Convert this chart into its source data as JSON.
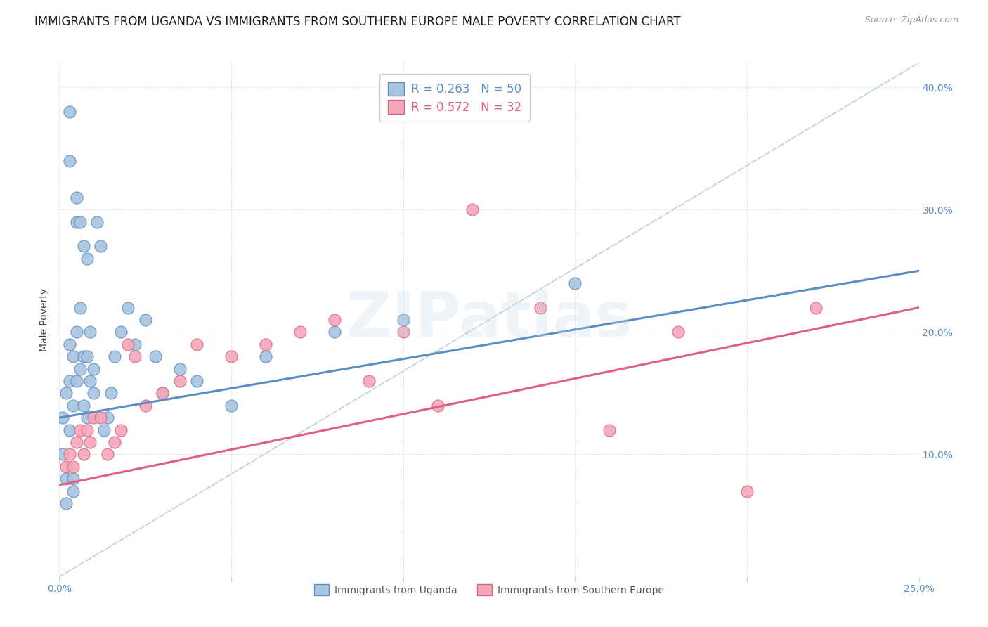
{
  "title": "IMMIGRANTS FROM UGANDA VS IMMIGRANTS FROM SOUTHERN EUROPE MALE POVERTY CORRELATION CHART",
  "source": "Source: ZipAtlas.com",
  "ylabel": "Male Poverty",
  "xlim": [
    0.0,
    0.25
  ],
  "ylim": [
    0.0,
    0.42
  ],
  "legend_r1": "R = 0.263",
  "legend_n1": "N = 50",
  "legend_r2": "R = 0.572",
  "legend_n2": "N = 32",
  "color_uganda": "#a8c4e0",
  "color_s_europe": "#f4a7b9",
  "color_uganda_line": "#5b8ec4",
  "color_s_europe_line": "#e06080",
  "color_dashed_line": "#b8ccd8",
  "legend_label1": "Immigrants from Uganda",
  "legend_label2": "Immigrants from Southern Europe",
  "uganda_x": [
    0.001,
    0.001,
    0.002,
    0.002,
    0.002,
    0.003,
    0.003,
    0.003,
    0.003,
    0.003,
    0.004,
    0.004,
    0.004,
    0.004,
    0.005,
    0.005,
    0.005,
    0.005,
    0.006,
    0.006,
    0.006,
    0.007,
    0.007,
    0.007,
    0.008,
    0.008,
    0.008,
    0.009,
    0.009,
    0.01,
    0.01,
    0.011,
    0.012,
    0.013,
    0.014,
    0.015,
    0.016,
    0.018,
    0.02,
    0.022,
    0.025,
    0.028,
    0.03,
    0.035,
    0.04,
    0.05,
    0.06,
    0.08,
    0.1,
    0.15
  ],
  "uganda_y": [
    0.13,
    0.1,
    0.15,
    0.08,
    0.06,
    0.38,
    0.34,
    0.19,
    0.16,
    0.12,
    0.18,
    0.14,
    0.08,
    0.07,
    0.31,
    0.29,
    0.2,
    0.16,
    0.29,
    0.22,
    0.17,
    0.27,
    0.18,
    0.14,
    0.13,
    0.26,
    0.18,
    0.2,
    0.16,
    0.17,
    0.15,
    0.29,
    0.27,
    0.12,
    0.13,
    0.15,
    0.18,
    0.2,
    0.22,
    0.19,
    0.21,
    0.18,
    0.15,
    0.17,
    0.16,
    0.14,
    0.18,
    0.2,
    0.21,
    0.24
  ],
  "s_europe_x": [
    0.002,
    0.003,
    0.004,
    0.005,
    0.006,
    0.007,
    0.008,
    0.009,
    0.01,
    0.012,
    0.014,
    0.016,
    0.018,
    0.02,
    0.022,
    0.025,
    0.03,
    0.035,
    0.04,
    0.05,
    0.06,
    0.07,
    0.08,
    0.09,
    0.1,
    0.11,
    0.12,
    0.14,
    0.16,
    0.18,
    0.2,
    0.22
  ],
  "s_europe_y": [
    0.09,
    0.1,
    0.09,
    0.11,
    0.12,
    0.1,
    0.12,
    0.11,
    0.13,
    0.13,
    0.1,
    0.11,
    0.12,
    0.19,
    0.18,
    0.14,
    0.15,
    0.16,
    0.19,
    0.18,
    0.19,
    0.2,
    0.21,
    0.16,
    0.2,
    0.14,
    0.3,
    0.22,
    0.12,
    0.2,
    0.07,
    0.22
  ],
  "watermark_text": "ZIPatlas",
  "title_fontsize": 12,
  "axis_label_fontsize": 10,
  "tick_fontsize": 10,
  "legend_fontsize": 12
}
